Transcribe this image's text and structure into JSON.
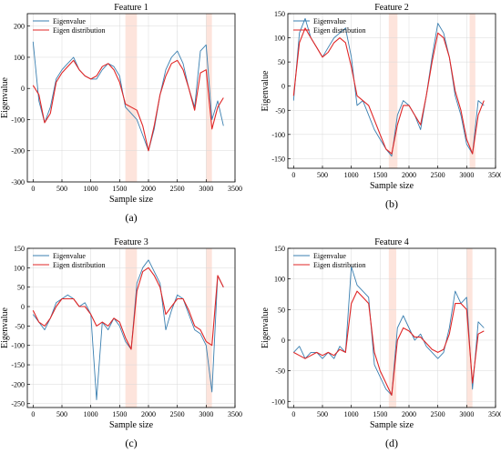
{
  "colors": {
    "eigenvalue": "#3a7fb0",
    "eigen_distribution": "#e02626",
    "highlight_band": "#fde4dc",
    "grid": "#d9d9d9"
  },
  "chart_data": [
    {
      "type": "line",
      "title": "Feature 1",
      "caption": "(a)",
      "xlabel": "Sample size",
      "ylabel": "Eigenvalue",
      "xlim": [
        -100,
        3500
      ],
      "ylim": [
        -300,
        240
      ],
      "xticks": [
        0,
        500,
        1000,
        1500,
        2000,
        2500,
        3000,
        3500
      ],
      "yticks": [
        -300,
        -200,
        -100,
        0,
        100,
        200
      ],
      "grid": true,
      "legend": "top-left",
      "highlight_ranges": [
        [
          1600,
          1800
        ],
        [
          3000,
          3100
        ]
      ],
      "series": [
        {
          "name": "Eigenvalue",
          "x": [
            0,
            100,
            200,
            300,
            400,
            500,
            600,
            700,
            800,
            900,
            1000,
            1100,
            1200,
            1300,
            1400,
            1500,
            1600,
            1700,
            1800,
            1900,
            2000,
            2100,
            2200,
            2300,
            2400,
            2500,
            2600,
            2700,
            2800,
            2900,
            3000,
            3100,
            3200,
            3300
          ],
          "y": [
            150,
            -40,
            -110,
            -60,
            30,
            60,
            80,
            100,
            60,
            40,
            30,
            30,
            60,
            80,
            70,
            40,
            -60,
            -80,
            -100,
            -150,
            -200,
            -130,
            -20,
            60,
            100,
            120,
            80,
            0,
            -60,
            120,
            140,
            -100,
            -40,
            -120
          ]
        },
        {
          "name": "Eigen distribution",
          "x": [
            0,
            100,
            200,
            300,
            400,
            500,
            600,
            700,
            800,
            900,
            1000,
            1100,
            1200,
            1300,
            1400,
            1500,
            1600,
            1700,
            1800,
            1900,
            2000,
            2100,
            2200,
            2300,
            2400,
            2500,
            2600,
            2700,
            2800,
            2900,
            3000,
            3100,
            3200,
            3300
          ],
          "y": [
            10,
            -20,
            -110,
            -80,
            20,
            50,
            70,
            90,
            60,
            40,
            30,
            40,
            70,
            80,
            60,
            20,
            -50,
            -60,
            -70,
            -120,
            -200,
            -120,
            -20,
            40,
            80,
            90,
            60,
            0,
            -70,
            50,
            60,
            -130,
            -60,
            -30
          ]
        }
      ]
    },
    {
      "type": "line",
      "title": "Feature 2",
      "caption": "(b)",
      "xlabel": "Sample size",
      "ylabel": "Eigenvalue",
      "xlim": [
        -100,
        3500
      ],
      "ylim": [
        -170,
        150
      ],
      "xticks": [
        0,
        500,
        1000,
        1500,
        2000,
        2500,
        3000,
        3500
      ],
      "yticks": [
        -150,
        -100,
        -50,
        0,
        50,
        100,
        150
      ],
      "grid": true,
      "legend": "top-left",
      "highlight_ranges": [
        [
          1650,
          1800
        ],
        [
          3050,
          3150
        ]
      ],
      "series": [
        {
          "name": "Eigenvalue",
          "x": [
            0,
            100,
            200,
            300,
            400,
            500,
            600,
            700,
            800,
            900,
            1000,
            1100,
            1200,
            1300,
            1400,
            1500,
            1600,
            1700,
            1800,
            1900,
            2000,
            2100,
            2200,
            2300,
            2400,
            2500,
            2600,
            2700,
            2800,
            2900,
            3000,
            3100,
            3200,
            3300
          ],
          "y": [
            -30,
            110,
            140,
            100,
            80,
            60,
            80,
            100,
            110,
            120,
            60,
            -40,
            -30,
            -60,
            -90,
            -110,
            -130,
            -145,
            -60,
            -30,
            -40,
            -60,
            -90,
            -20,
            60,
            130,
            110,
            60,
            -20,
            -60,
            -120,
            -140,
            -30,
            -40
          ]
        },
        {
          "name": "Eigen distribution",
          "x": [
            0,
            100,
            200,
            300,
            400,
            500,
            600,
            700,
            800,
            900,
            1000,
            1100,
            1200,
            1300,
            1400,
            1500,
            1600,
            1700,
            1800,
            1900,
            2000,
            2100,
            2200,
            2300,
            2400,
            2500,
            2600,
            2700,
            2800,
            2900,
            3000,
            3100,
            3200,
            3300
          ],
          "y": [
            -20,
            90,
            120,
            100,
            80,
            60,
            70,
            90,
            100,
            90,
            40,
            -20,
            -30,
            -40,
            -70,
            -100,
            -130,
            -140,
            -80,
            -40,
            -40,
            -60,
            -80,
            -20,
            50,
            110,
            100,
            60,
            -10,
            -50,
            -110,
            -140,
            -60,
            -30
          ]
        }
      ]
    },
    {
      "type": "line",
      "title": "Feature 3",
      "caption": "(c)",
      "xlabel": "Sample size",
      "ylabel": "Eigenvalue",
      "xlim": [
        -100,
        3500
      ],
      "ylim": [
        -260,
        150
      ],
      "xticks": [
        0,
        500,
        1000,
        1500,
        2000,
        2500,
        3000,
        3500
      ],
      "yticks": [
        -250,
        -200,
        -150,
        -100,
        -50,
        0,
        50,
        100,
        150
      ],
      "grid": true,
      "legend": "top-left",
      "highlight_ranges": [
        [
          1600,
          1800
        ],
        [
          3000,
          3100
        ]
      ],
      "series": [
        {
          "name": "Eigenvalue",
          "x": [
            0,
            100,
            200,
            300,
            400,
            500,
            600,
            700,
            800,
            900,
            1000,
            1100,
            1200,
            1300,
            1400,
            1500,
            1600,
            1700,
            1800,
            1900,
            2000,
            2100,
            2200,
            2300,
            2400,
            2500,
            2600,
            2700,
            2800,
            2900,
            3000,
            3100,
            3200,
            3300
          ],
          "y": [
            -20,
            -40,
            -60,
            -30,
            10,
            20,
            30,
            20,
            0,
            10,
            -20,
            -240,
            -40,
            -60,
            -30,
            -50,
            -90,
            -110,
            60,
            100,
            120,
            90,
            60,
            -60,
            -10,
            30,
            20,
            -20,
            -60,
            -70,
            -100,
            -220,
            80,
            50
          ]
        },
        {
          "name": "Eigen distribution",
          "x": [
            0,
            100,
            200,
            300,
            400,
            500,
            600,
            700,
            800,
            900,
            1000,
            1100,
            1200,
            1300,
            1400,
            1500,
            1600,
            1700,
            1800,
            1900,
            2000,
            2100,
            2200,
            2300,
            2400,
            2500,
            2600,
            2700,
            2800,
            2900,
            3000,
            3100,
            3200,
            3300
          ],
          "y": [
            -10,
            -40,
            -50,
            -30,
            0,
            20,
            20,
            20,
            0,
            0,
            -20,
            -50,
            -40,
            -50,
            -30,
            -40,
            -80,
            -110,
            40,
            90,
            100,
            80,
            50,
            -20,
            0,
            20,
            20,
            -10,
            -50,
            -60,
            -90,
            -100,
            80,
            50
          ]
        }
      ]
    },
    {
      "type": "line",
      "title": "Feature 4",
      "caption": "(d)",
      "xlabel": "Sample size",
      "ylabel": "Eigenvalue",
      "xlim": [
        -100,
        3500
      ],
      "ylim": [
        -110,
        150
      ],
      "xticks": [
        0,
        500,
        1000,
        1500,
        2000,
        2500,
        3000,
        3500
      ],
      "yticks": [
        -100,
        -50,
        0,
        50,
        100,
        150
      ],
      "grid": true,
      "legend": "top-left",
      "highlight_ranges": [
        [
          1650,
          1780
        ],
        [
          3000,
          3100
        ]
      ],
      "series": [
        {
          "name": "Eigenvalue",
          "x": [
            0,
            100,
            200,
            300,
            400,
            500,
            600,
            700,
            800,
            900,
            1000,
            1100,
            1200,
            1300,
            1400,
            1500,
            1600,
            1700,
            1800,
            1900,
            2000,
            2100,
            2200,
            2300,
            2400,
            2500,
            2600,
            2700,
            2800,
            2900,
            3000,
            3100,
            3200,
            3300
          ],
          "y": [
            -20,
            -10,
            -30,
            -20,
            -20,
            -30,
            -20,
            -30,
            -10,
            -20,
            120,
            90,
            80,
            70,
            -40,
            -60,
            -80,
            -90,
            20,
            40,
            20,
            0,
            10,
            -10,
            -20,
            -30,
            -20,
            20,
            80,
            60,
            70,
            -80,
            30,
            20
          ]
        },
        {
          "name": "Eigen distribution",
          "x": [
            0,
            100,
            200,
            300,
            400,
            500,
            600,
            700,
            800,
            900,
            1000,
            1100,
            1200,
            1300,
            1400,
            1500,
            1600,
            1700,
            1800,
            1900,
            2000,
            2100,
            2200,
            2300,
            2400,
            2500,
            2600,
            2700,
            2800,
            2900,
            3000,
            3100,
            3200,
            3300
          ],
          "y": [
            -20,
            -25,
            -30,
            -25,
            -20,
            -25,
            -20,
            -25,
            -15,
            -20,
            60,
            80,
            70,
            60,
            -20,
            -50,
            -70,
            -90,
            0,
            20,
            15,
            5,
            5,
            -5,
            -15,
            -20,
            -15,
            10,
            60,
            60,
            50,
            -70,
            10,
            15
          ]
        }
      ]
    }
  ]
}
